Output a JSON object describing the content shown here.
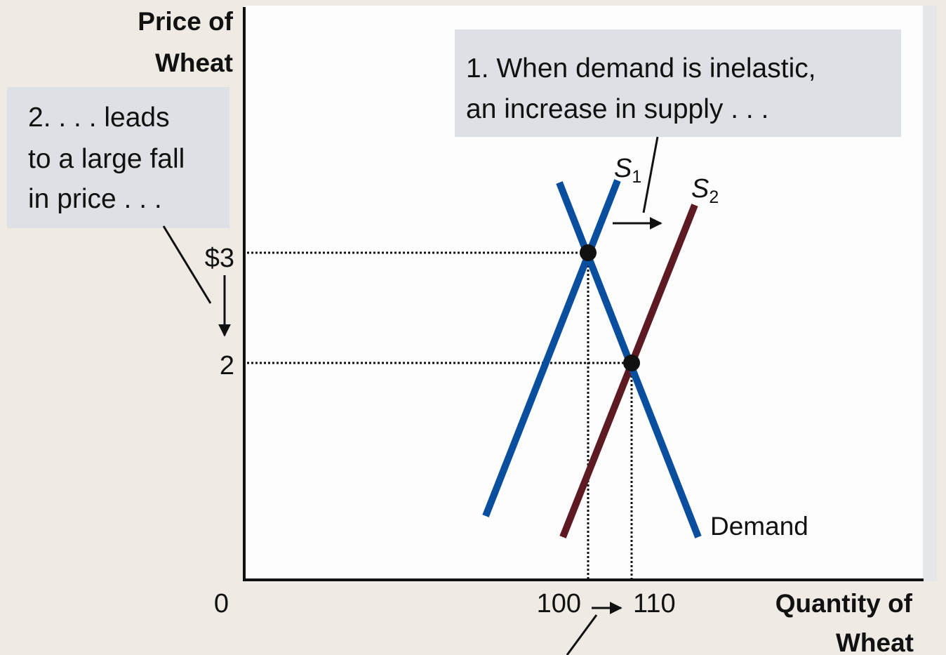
{
  "y_axis": {
    "label_lines": [
      "Price of",
      "Wheat"
    ],
    "ticks": [
      "$3",
      "2"
    ]
  },
  "x_axis": {
    "label_lines": [
      "Quantity of",
      "Wheat"
    ],
    "origin": "0",
    "ticks": [
      "100",
      "110"
    ]
  },
  "curves": [
    {
      "name": "S",
      "subscript": "1"
    },
    {
      "name": "S",
      "subscript": "2"
    },
    {
      "name": "Demand"
    }
  ],
  "annotations": [
    {
      "lines": [
        "1. When demand is inelastic,",
        "an increase in supply  . . ."
      ]
    },
    {
      "lines": [
        "2. . . . leads",
        "to a large fall",
        "in price . . ."
      ]
    }
  ]
}
